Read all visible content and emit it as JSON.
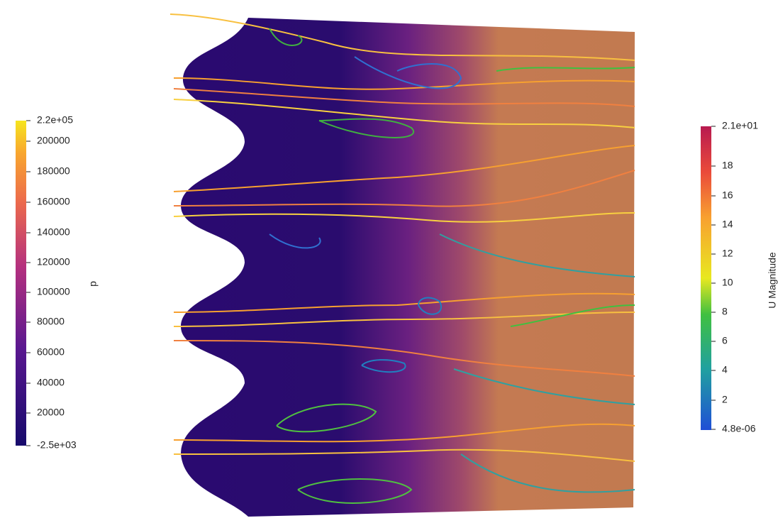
{
  "colorbars": [
    {
      "title": "p",
      "labels": [
        "2.2e+05",
        "200000",
        "180000",
        "160000",
        "140000",
        "120000",
        "100000",
        "80000",
        "60000",
        "40000",
        "20000",
        "-2.5e+03"
      ]
    },
    {
      "title": "U Magnitude",
      "labels": [
        "2.1e+01",
        "18",
        "16",
        "14",
        "12",
        "10",
        "8",
        "6",
        "4",
        "2",
        "4.8e-06"
      ]
    }
  ]
}
